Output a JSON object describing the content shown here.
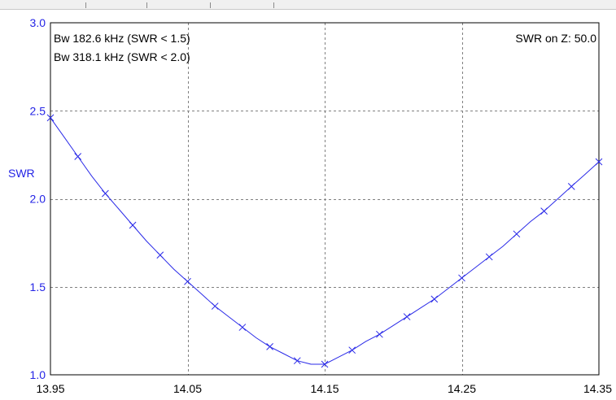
{
  "window": {
    "top_strip_color": "#f0f0f0"
  },
  "annotations": {
    "bw_15": "Bw 182.6 kHz (SWR < 1.5)",
    "bw_20": "Bw 318.1 kHz (SWR < 2.0)",
    "swr_on_z": "SWR on Z: 50.0"
  },
  "colors": {
    "series": "#2b2be8",
    "axis_text": "#2525e6",
    "grid": "#808080",
    "frame": "#000000"
  },
  "chart_data": {
    "type": "line",
    "title": "",
    "xlabel": "",
    "ylabel": "SWR",
    "xlim": [
      13.95,
      14.35
    ],
    "ylim": [
      1.0,
      3.0
    ],
    "x_ticks": [
      "13.95",
      "14.05",
      "14.15",
      "14.25",
      "14.35"
    ],
    "y_ticks": [
      "1.0",
      "1.5",
      "2.0",
      "2.5",
      "3.0"
    ],
    "x_tick_values": [
      13.95,
      14.05,
      14.15,
      14.25,
      14.35
    ],
    "y_tick_values": [
      1.0,
      1.5,
      2.0,
      2.5,
      3.0
    ],
    "grid": true,
    "marker": "x",
    "series": [
      {
        "x": [
          13.95,
          13.96,
          13.97,
          13.98,
          13.99,
          14.0,
          14.01,
          14.02,
          14.03,
          14.04,
          14.05,
          14.06,
          14.07,
          14.08,
          14.09,
          14.1,
          14.11,
          14.12,
          14.13,
          14.14,
          14.15,
          14.16,
          14.17,
          14.18,
          14.19,
          14.2,
          14.21,
          14.22,
          14.23,
          14.24,
          14.25,
          14.26,
          14.27,
          14.28,
          14.29,
          14.3,
          14.31,
          14.32,
          14.33,
          14.34,
          14.35
        ],
        "y": [
          2.46,
          2.35,
          2.24,
          2.13,
          2.03,
          1.94,
          1.85,
          1.76,
          1.68,
          1.6,
          1.53,
          1.46,
          1.39,
          1.33,
          1.27,
          1.21,
          1.16,
          1.12,
          1.08,
          1.06,
          1.06,
          1.1,
          1.14,
          1.19,
          1.23,
          1.28,
          1.33,
          1.38,
          1.43,
          1.49,
          1.55,
          1.61,
          1.67,
          1.73,
          1.8,
          1.87,
          1.93,
          2.0,
          2.07,
          2.14,
          2.21
        ],
        "marked_x": [
          13.95,
          13.97,
          13.99,
          14.01,
          14.03,
          14.05,
          14.07,
          14.09,
          14.11,
          14.13,
          14.15,
          14.17,
          14.19,
          14.21,
          14.23,
          14.25,
          14.27,
          14.29,
          14.31,
          14.33,
          14.35
        ]
      }
    ]
  }
}
